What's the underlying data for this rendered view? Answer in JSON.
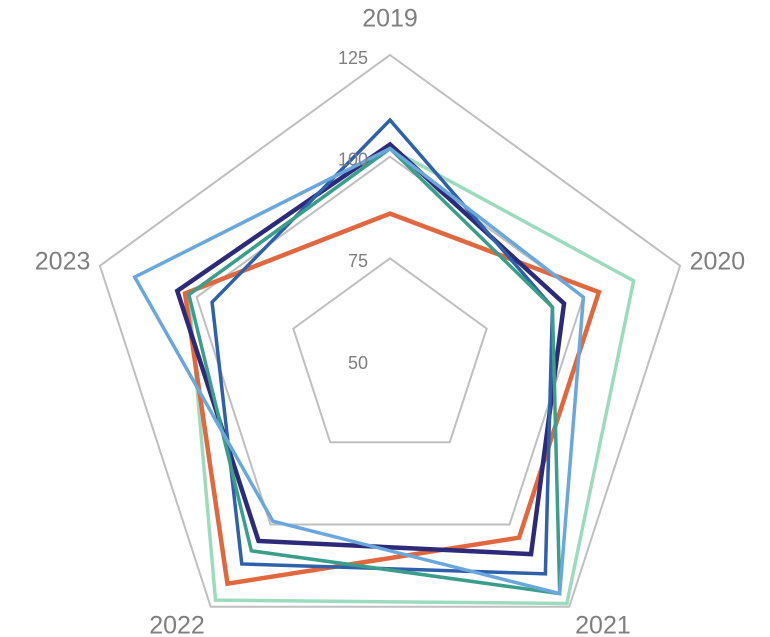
{
  "chart_data": {
    "type": "radar",
    "categories": [
      "2019",
      "2020",
      "2021",
      "2022",
      "2023"
    ],
    "rlim": [
      50,
      125
    ],
    "rticks": [
      50,
      75,
      100,
      125
    ],
    "grid": true,
    "series": [
      {
        "color": "#9ddbbf",
        "values": [
          102,
          113,
          124,
          123,
          102
        ]
      },
      {
        "color": "#e0673e",
        "values": [
          86,
          104,
          104,
          118,
          103
        ]
      },
      {
        "color": "#2d2a7a",
        "values": [
          103,
          95,
          109,
          105,
          105
        ]
      },
      {
        "color": "#2f60aa",
        "values": [
          109,
          92,
          115,
          112,
          96
        ]
      },
      {
        "color": "#3a9e8a",
        "values": [
          102,
          92,
          121,
          108,
          102
        ]
      },
      {
        "color": "#6aa7dc",
        "values": [
          102,
          100,
          121,
          99,
          116
        ]
      }
    ]
  }
}
